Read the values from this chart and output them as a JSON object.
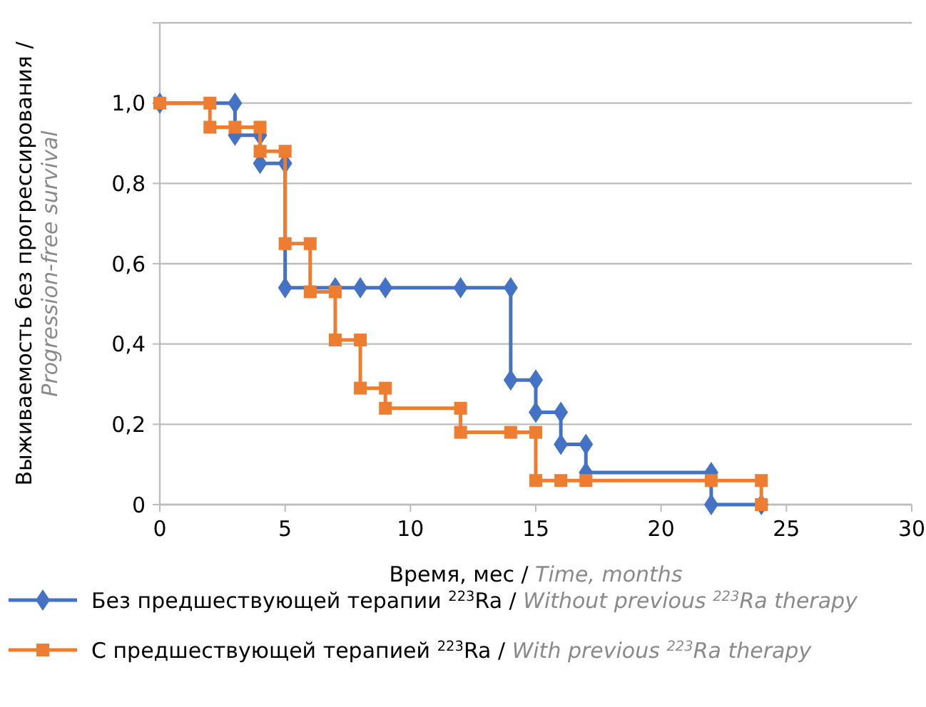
{
  "chart_data": {
    "type": "line",
    "xlabel": "Время, мес / Time, months",
    "ylabel": "Выживаемость без прогрессирования / Progression-free survival",
    "xlim": [
      0,
      30
    ],
    "xticks": [
      0,
      5,
      10,
      15,
      20,
      25,
      30
    ],
    "ylim": [
      0,
      1.2
    ],
    "yticks": [
      {
        "value": 0,
        "label": "0"
      },
      {
        "value": 0.2,
        "label": "0,2"
      },
      {
        "value": 0.4,
        "label": "0,4"
      },
      {
        "value": 0.6,
        "label": "0,6"
      },
      {
        "value": 0.8,
        "label": "0,8"
      },
      {
        "value": 1,
        "label": "1,0"
      },
      {
        "value": 1.2,
        "label": null
      }
    ],
    "grid": "y",
    "legend": "bottom",
    "series": [
      {
        "name": "Без предшествующей терапии $^{223}$Ra / Without previous $^{223}$Ra therapy",
        "color": "#4472c4",
        "marker": "diamond",
        "x": [
          0,
          3,
          3,
          4,
          4,
          5,
          5,
          7,
          8,
          9,
          12,
          14,
          14,
          15,
          15,
          16,
          16,
          17,
          17,
          22,
          22,
          24
        ],
        "values": [
          1,
          1,
          0.92,
          0.92,
          0.85,
          0.85,
          0.54,
          0.54,
          0.54,
          0.54,
          0.54,
          0.54,
          0.31,
          0.31,
          0.23,
          0.23,
          0.15,
          0.15,
          0.08,
          0.08,
          0,
          0
        ]
      },
      {
        "name": "С предшествующей терапией $^{223}$Ra / With previous $^{223}$Ra therapy",
        "color": "#ed7d31",
        "marker": "square",
        "x": [
          0,
          2,
          2,
          3,
          4,
          4,
          5,
          5,
          6,
          6,
          7,
          7,
          8,
          8,
          9,
          9,
          12,
          12,
          14,
          15,
          15,
          16,
          17,
          22,
          24,
          24
        ],
        "values": [
          1,
          1,
          0.94,
          0.94,
          0.94,
          0.88,
          0.88,
          0.65,
          0.65,
          0.53,
          0.53,
          0.41,
          0.41,
          0.29,
          0.29,
          0.24,
          0.24,
          0.18,
          0.18,
          0.18,
          0.06,
          0.06,
          0.06,
          0.06,
          0.06,
          0
        ]
      }
    ]
  }
}
